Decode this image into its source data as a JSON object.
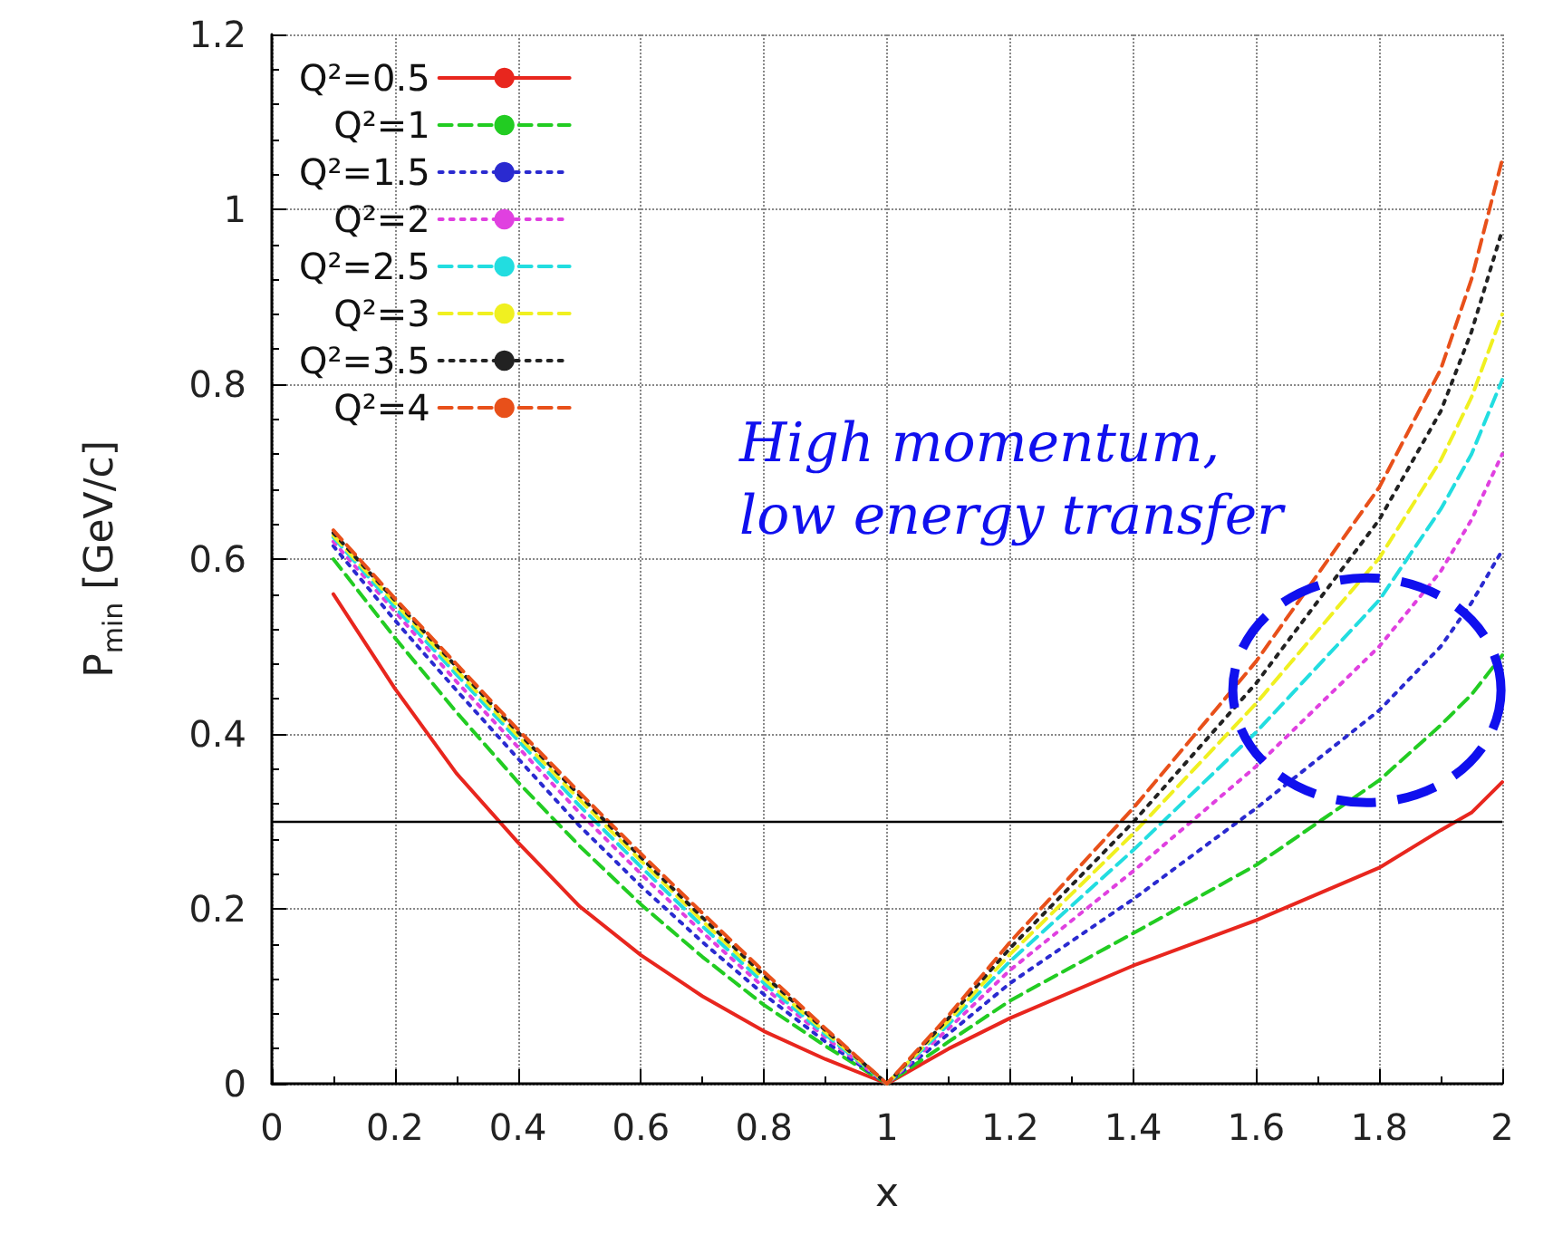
{
  "chart_data": {
    "type": "line",
    "xlabel": "x",
    "ylabel": "P$_{min}$ [GeV/c]",
    "x": [
      0.1,
      0.2,
      0.3,
      0.4,
      0.5,
      0.6,
      0.7,
      0.8,
      0.9,
      1.0,
      1.1,
      1.2,
      1.4,
      1.6,
      1.8,
      1.9,
      1.95,
      2.0
    ],
    "xlim": [
      0,
      2
    ],
    "xticks": [
      0,
      0.2,
      0.4,
      0.6,
      0.8,
      1,
      1.2,
      1.4,
      1.6,
      1.8,
      2
    ],
    "ylim": [
      0,
      1.2
    ],
    "yticks": [
      0,
      0.2,
      0.4,
      0.6,
      0.8,
      1,
      1.2
    ],
    "grid": true,
    "legend": "top left",
    "marker": "none",
    "series": [
      {
        "name": "Q²=0.5",
        "color": "#e8261e",
        "line_style": "solid",
        "values": [
          0.56,
          0.452,
          0.355,
          0.276,
          0.203,
          0.147,
          0.1,
          0.06,
          0.028,
          0,
          0.04,
          0.075,
          0.135,
          0.187,
          0.247,
          0.29,
          0.31,
          0.345
        ]
      },
      {
        "name": "Q²=1",
        "color": "#22cc22",
        "line_style": "dashed",
        "values": [
          0.6,
          0.51,
          0.425,
          0.345,
          0.272,
          0.205,
          0.145,
          0.09,
          0.043,
          0,
          0.048,
          0.095,
          0.172,
          0.25,
          0.347,
          0.41,
          0.445,
          0.49
        ]
      },
      {
        "name": "Q²=1.5",
        "color": "#2a2ad0",
        "line_style": "dotted",
        "values": [
          0.615,
          0.53,
          0.45,
          0.372,
          0.295,
          0.226,
          0.162,
          0.102,
          0.048,
          0,
          0.057,
          0.115,
          0.211,
          0.315,
          0.427,
          0.5,
          0.55,
          0.61
        ]
      },
      {
        "name": "Q²=2",
        "color": "#e040e0",
        "line_style": "dotted",
        "values": [
          0.62,
          0.54,
          0.46,
          0.385,
          0.31,
          0.24,
          0.173,
          0.11,
          0.053,
          0,
          0.063,
          0.13,
          0.243,
          0.363,
          0.5,
          0.586,
          0.645,
          0.72
        ]
      },
      {
        "name": "Q²=2.5",
        "color": "#22dde0",
        "line_style": "dashed",
        "values": [
          0.625,
          0.545,
          0.468,
          0.393,
          0.318,
          0.248,
          0.18,
          0.115,
          0.056,
          0,
          0.068,
          0.14,
          0.267,
          0.402,
          0.553,
          0.657,
          0.72,
          0.805
        ]
      },
      {
        "name": "Q²=3",
        "color": "#f0f020",
        "line_style": "dashed",
        "values": [
          0.627,
          0.55,
          0.473,
          0.398,
          0.325,
          0.255,
          0.186,
          0.12,
          0.059,
          0,
          0.072,
          0.148,
          0.286,
          0.435,
          0.601,
          0.713,
          0.785,
          0.88
        ]
      },
      {
        "name": "Q²=3.5",
        "color": "#222222",
        "line_style": "dotted",
        "values": [
          0.63,
          0.553,
          0.477,
          0.402,
          0.33,
          0.259,
          0.19,
          0.124,
          0.061,
          0,
          0.075,
          0.155,
          0.299,
          0.458,
          0.645,
          0.769,
          0.86,
          0.976
        ]
      },
      {
        "name": "Q²=4",
        "color": "#e8501a",
        "line_style": "dashed",
        "values": [
          0.633,
          0.555,
          0.48,
          0.405,
          0.333,
          0.263,
          0.195,
          0.128,
          0.063,
          0,
          0.078,
          0.162,
          0.315,
          0.483,
          0.682,
          0.817,
          0.92,
          1.057
        ]
      }
    ],
    "ref_lines": [
      {
        "axis": "y",
        "value": 0.3,
        "color": "#000000"
      }
    ],
    "annotations": [
      "High momentum,\nlow energy transfer"
    ]
  }
}
